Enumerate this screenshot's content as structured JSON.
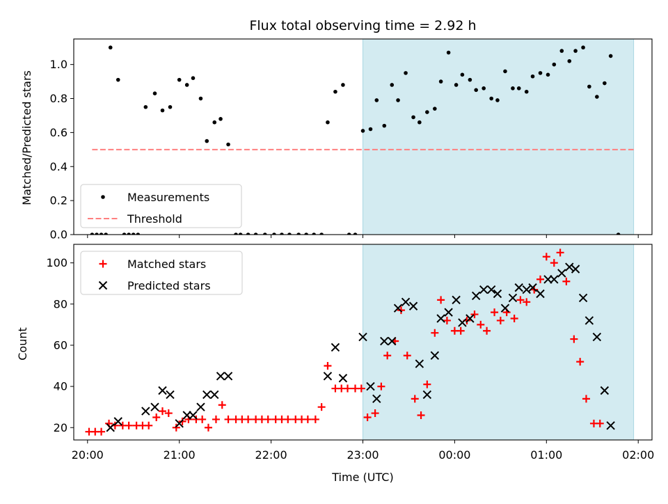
{
  "chart_data": [
    {
      "type": "scatter",
      "title": "Flux total observing time = 2.92 h",
      "xlabel": "",
      "ylabel": "Matched/Predicted stars",
      "xlim": [
        "19:51",
        "02:09"
      ],
      "ylim": [
        0,
        1.15
      ],
      "yticks": [
        "0.0",
        "0.2",
        "0.4",
        "0.6",
        "0.8",
        "1.0"
      ],
      "highlight": {
        "start": "23:00",
        "end": "01:57",
        "color": "#d3ebf1"
      },
      "legend": {
        "placement": "lower-left",
        "entries": [
          "Measurements",
          "Threshold"
        ]
      },
      "series": [
        {
          "name": "Measurements",
          "marker": "dot",
          "color": "#000000",
          "points": [
            [
              "20:03",
              0.0
            ],
            [
              "20:06",
              0.0
            ],
            [
              "20:09",
              0.0
            ],
            [
              "20:12",
              0.0
            ],
            [
              "20:15",
              1.1
            ],
            [
              "20:20",
              0.91
            ],
            [
              "20:24",
              0.0
            ],
            [
              "20:27",
              0.0
            ],
            [
              "20:30",
              0.0
            ],
            [
              "20:33",
              0.0
            ],
            [
              "20:38",
              0.75
            ],
            [
              "20:44",
              0.83
            ],
            [
              "20:49",
              0.73
            ],
            [
              "20:54",
              0.75
            ],
            [
              "21:00",
              0.91
            ],
            [
              "21:05",
              0.88
            ],
            [
              "21:09",
              0.92
            ],
            [
              "21:14",
              0.8
            ],
            [
              "21:18",
              0.55
            ],
            [
              "21:23",
              0.66
            ],
            [
              "21:27",
              0.68
            ],
            [
              "21:32",
              0.53
            ],
            [
              "21:37",
              0.0
            ],
            [
              "21:40",
              0.0
            ],
            [
              "21:45",
              0.0
            ],
            [
              "21:50",
              0.0
            ],
            [
              "21:56",
              0.0
            ],
            [
              "22:02",
              0.0
            ],
            [
              "22:07",
              0.0
            ],
            [
              "22:12",
              0.0
            ],
            [
              "22:18",
              0.0
            ],
            [
              "22:23",
              0.0
            ],
            [
              "22:28",
              0.0
            ],
            [
              "22:33",
              0.0
            ],
            [
              "22:37",
              0.66
            ],
            [
              "22:42",
              0.84
            ],
            [
              "22:47",
              0.88
            ],
            [
              "22:51",
              0.0
            ],
            [
              "22:55",
              0.0
            ],
            [
              "23:00",
              0.61
            ],
            [
              "23:05",
              0.62
            ],
            [
              "23:09",
              0.79
            ],
            [
              "23:14",
              0.64
            ],
            [
              "23:19",
              0.88
            ],
            [
              "23:23",
              0.79
            ],
            [
              "23:28",
              0.95
            ],
            [
              "23:33",
              0.69
            ],
            [
              "23:37",
              0.66
            ],
            [
              "23:42",
              0.72
            ],
            [
              "23:47",
              0.74
            ],
            [
              "23:51",
              0.9
            ],
            [
              "23:56",
              1.07
            ],
            [
              "00:01",
              0.88
            ],
            [
              "00:05",
              0.94
            ],
            [
              "00:10",
              0.91
            ],
            [
              "00:14",
              0.85
            ],
            [
              "00:19",
              0.86
            ],
            [
              "00:24",
              0.8
            ],
            [
              "00:28",
              0.79
            ],
            [
              "00:33",
              0.96
            ],
            [
              "00:38",
              0.86
            ],
            [
              "00:42",
              0.86
            ],
            [
              "00:47",
              0.84
            ],
            [
              "00:51",
              0.93
            ],
            [
              "00:56",
              0.95
            ],
            [
              "01:01",
              0.94
            ],
            [
              "01:05",
              1.0
            ],
            [
              "01:10",
              1.08
            ],
            [
              "01:15",
              1.02
            ],
            [
              "01:19",
              1.08
            ],
            [
              "01:24",
              1.1
            ],
            [
              "01:28",
              0.87
            ],
            [
              "01:33",
              0.81
            ],
            [
              "01:38",
              0.89
            ],
            [
              "01:42",
              1.05
            ],
            [
              "01:47",
              0.0
            ]
          ]
        },
        {
          "name": "Threshold",
          "marker": "dashed-line",
          "color": "#ff7f7f",
          "points": [
            [
              "20:03",
              0.5
            ],
            [
              "01:57",
              0.5
            ]
          ]
        }
      ]
    },
    {
      "type": "scatter",
      "title": "",
      "xlabel": "Time (UTC)",
      "ylabel": "Count",
      "xlim": [
        "19:51",
        "02:09"
      ],
      "ylim": [
        14,
        109
      ],
      "yticks": [
        "20",
        "40",
        "60",
        "80",
        "100"
      ],
      "xticks": [
        "20:00",
        "21:00",
        "22:00",
        "23:00",
        "00:00",
        "01:00",
        "02:00"
      ],
      "highlight": {
        "start": "23:00",
        "end": "01:57",
        "color": "#d3ebf1"
      },
      "legend": {
        "placement": "upper-left",
        "entries": [
          "Matched stars",
          "Predicted stars"
        ]
      },
      "series": [
        {
          "name": "Matched stars",
          "marker": "plus",
          "color": "#ff0000",
          "points": [
            [
              "20:01",
              18
            ],
            [
              "20:05",
              18
            ],
            [
              "20:09",
              18
            ],
            [
              "20:14",
              22
            ],
            [
              "20:18",
              21
            ],
            [
              "20:23",
              21
            ],
            [
              "20:27",
              21
            ],
            [
              "20:32",
              21
            ],
            [
              "20:36",
              21
            ],
            [
              "20:40",
              21
            ],
            [
              "20:45",
              25
            ],
            [
              "20:49",
              28
            ],
            [
              "20:53",
              27
            ],
            [
              "20:58",
              20
            ],
            [
              "21:02",
              23
            ],
            [
              "21:06",
              24
            ],
            [
              "21:11",
              24
            ],
            [
              "21:15",
              24
            ],
            [
              "21:19",
              20
            ],
            [
              "21:24",
              24
            ],
            [
              "21:28",
              31
            ],
            [
              "21:32",
              24
            ],
            [
              "21:37",
              24
            ],
            [
              "21:41",
              24
            ],
            [
              "21:45",
              24
            ],
            [
              "21:50",
              24
            ],
            [
              "21:54",
              24
            ],
            [
              "21:58",
              24
            ],
            [
              "22:03",
              24
            ],
            [
              "22:07",
              24
            ],
            [
              "22:11",
              24
            ],
            [
              "22:16",
              24
            ],
            [
              "22:20",
              24
            ],
            [
              "22:24",
              24
            ],
            [
              "22:29",
              24
            ],
            [
              "22:33",
              30
            ],
            [
              "22:37",
              50
            ],
            [
              "22:42",
              39
            ],
            [
              "22:46",
              39
            ],
            [
              "22:50",
              39
            ],
            [
              "22:55",
              39
            ],
            [
              "22:59",
              39
            ],
            [
              "23:03",
              25
            ],
            [
              "23:08",
              27
            ],
            [
              "23:12",
              40
            ],
            [
              "23:16",
              55
            ],
            [
              "23:21",
              62
            ],
            [
              "23:25",
              77
            ],
            [
              "23:29",
              55
            ],
            [
              "23:34",
              34
            ],
            [
              "23:38",
              26
            ],
            [
              "23:42",
              41
            ],
            [
              "23:47",
              66
            ],
            [
              "23:51",
              82
            ],
            [
              "23:55",
              72
            ],
            [
              "00:00",
              67
            ],
            [
              "00:04",
              67
            ],
            [
              "00:08",
              72
            ],
            [
              "00:13",
              75
            ],
            [
              "00:17",
              70
            ],
            [
              "00:21",
              67
            ],
            [
              "00:26",
              76
            ],
            [
              "00:30",
              72
            ],
            [
              "00:34",
              76
            ],
            [
              "00:39",
              73
            ],
            [
              "00:43",
              82
            ],
            [
              "00:47",
              81
            ],
            [
              "00:52",
              87
            ],
            [
              "00:56",
              92
            ],
            [
              "01:00",
              103
            ],
            [
              "01:05",
              100
            ],
            [
              "01:09",
              105
            ],
            [
              "01:13",
              91
            ],
            [
              "01:18",
              63
            ],
            [
              "01:22",
              52
            ],
            [
              "01:26",
              34
            ],
            [
              "01:31",
              22
            ],
            [
              "01:35",
              22
            ]
          ]
        },
        {
          "name": "Predicted stars",
          "marker": "x",
          "color": "#000000",
          "points": [
            [
              "20:15",
              20
            ],
            [
              "20:20",
              23
            ],
            [
              "20:38",
              28
            ],
            [
              "20:44",
              30
            ],
            [
              "20:49",
              38
            ],
            [
              "20:54",
              36
            ],
            [
              "21:00",
              22
            ],
            [
              "21:05",
              26
            ],
            [
              "21:09",
              26
            ],
            [
              "21:14",
              30
            ],
            [
              "21:18",
              36
            ],
            [
              "21:23",
              36
            ],
            [
              "21:27",
              45
            ],
            [
              "21:32",
              45
            ],
            [
              "22:37",
              45
            ],
            [
              "22:42",
              59
            ],
            [
              "22:47",
              44
            ],
            [
              "23:00",
              64
            ],
            [
              "23:05",
              40
            ],
            [
              "23:09",
              34
            ],
            [
              "23:14",
              62
            ],
            [
              "23:19",
              62
            ],
            [
              "23:23",
              78
            ],
            [
              "23:28",
              81
            ],
            [
              "23:33",
              79
            ],
            [
              "23:37",
              51
            ],
            [
              "23:42",
              36
            ],
            [
              "23:47",
              55
            ],
            [
              "23:51",
              73
            ],
            [
              "23:56",
              76
            ],
            [
              "00:01",
              82
            ],
            [
              "00:05",
              71
            ],
            [
              "00:10",
              73
            ],
            [
              "00:14",
              84
            ],
            [
              "00:19",
              87
            ],
            [
              "00:24",
              87
            ],
            [
              "00:28",
              85
            ],
            [
              "00:33",
              78
            ],
            [
              "00:38",
              83
            ],
            [
              "00:42",
              88
            ],
            [
              "00:47",
              87
            ],
            [
              "00:51",
              88
            ],
            [
              "00:56",
              85
            ],
            [
              "01:01",
              92
            ],
            [
              "01:05",
              92
            ],
            [
              "01:10",
              95
            ],
            [
              "01:15",
              98
            ],
            [
              "01:19",
              97
            ],
            [
              "01:24",
              83
            ],
            [
              "01:28",
              72
            ],
            [
              "01:33",
              64
            ],
            [
              "01:38",
              38
            ],
            [
              "01:42",
              21
            ]
          ]
        }
      ]
    }
  ]
}
